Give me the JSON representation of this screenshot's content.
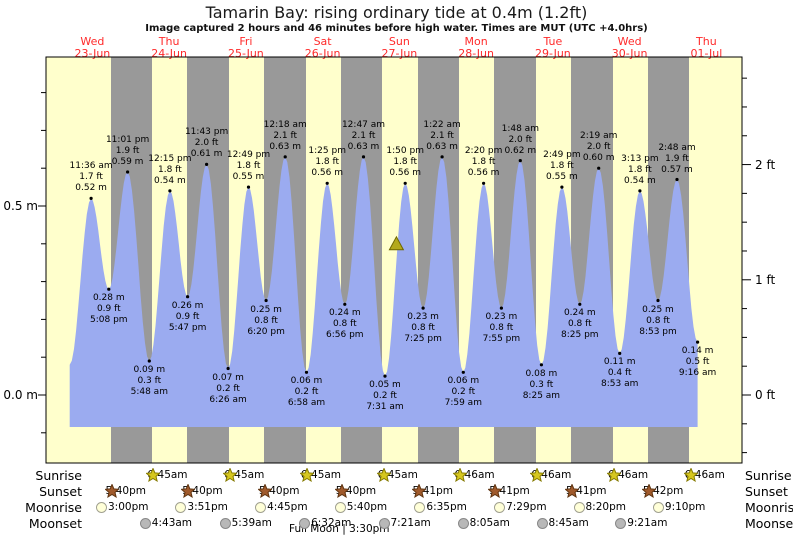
{
  "title": "Tamarin Bay: rising ordinary tide at 0.4m (1.2ft)",
  "subtitle": "Image captured 2 hours and 46 minutes before high water. Times are MUT (UTC +4.0hrs)",
  "days": [
    {
      "weekday": "Wed",
      "date": "23-Jun"
    },
    {
      "weekday": "Thu",
      "date": "24-Jun"
    },
    {
      "weekday": "Fri",
      "date": "25-Jun"
    },
    {
      "weekday": "Sat",
      "date": "26-Jun"
    },
    {
      "weekday": "Sun",
      "date": "27-Jun"
    },
    {
      "weekday": "Mon",
      "date": "28-Jun"
    },
    {
      "weekday": "Tue",
      "date": "29-Jun"
    },
    {
      "weekday": "Wed",
      "date": "30-Jun"
    },
    {
      "weekday": "Thu",
      "date": "01-Jul"
    }
  ],
  "colors": {
    "day_band": "#ffffcc",
    "night_band": "#999999",
    "tide_fill": "#9babf0",
    "day_label_red": "#ff2a2a",
    "sunrise_star": "#d6c71f",
    "sunset_star": "#a05a2c",
    "moonrise_circle": "#ffffd8",
    "moonset_circle": "#b8b8b8",
    "current_marker": "#b3a91c"
  },
  "chart_data": {
    "type": "area",
    "title": "Tide height over time",
    "xlabel": "date/time",
    "ylabel_left": "metres",
    "ylabel_right": "feet",
    "ylim_m": [
      -0.18,
      0.89
    ],
    "left_axis_labels": [
      {
        "text": "0.5 m",
        "value_m": 0.5
      },
      {
        "text": "0.0 m",
        "value_m": 0.0
      }
    ],
    "right_axis_labels": [
      {
        "text": "2 ft",
        "value_ft": 2
      },
      {
        "text": "1 ft",
        "value_ft": 1
      },
      {
        "text": "0 ft",
        "value_ft": 0
      }
    ],
    "extremes": [
      {
        "kind": "high",
        "day": 0,
        "time": "11:36 am",
        "ft_label": "1.7 ft",
        "m_label": "0.52 m",
        "height_m": 0.52
      },
      {
        "kind": "low",
        "day": 0,
        "time": "5:08 pm",
        "ft_label": "0.9 ft",
        "m_label": "0.28 m",
        "height_m": 0.28
      },
      {
        "kind": "high",
        "day": 0,
        "time": "11:01 pm",
        "ft_label": "1.9 ft",
        "m_label": "0.59 m",
        "height_m": 0.59
      },
      {
        "kind": "low",
        "day": 1,
        "time": "5:48 am",
        "ft_label": "0.3 ft",
        "m_label": "0.09 m",
        "height_m": 0.09
      },
      {
        "kind": "high",
        "day": 1,
        "time": "12:15 pm",
        "ft_label": "1.8 ft",
        "m_label": "0.54 m",
        "height_m": 0.54
      },
      {
        "kind": "low",
        "day": 1,
        "time": "5:47 pm",
        "ft_label": "0.9 ft",
        "m_label": "0.26 m",
        "height_m": 0.26
      },
      {
        "kind": "high",
        "day": 1,
        "time": "11:43 pm",
        "ft_label": "2.0 ft",
        "m_label": "0.61 m",
        "height_m": 0.61
      },
      {
        "kind": "low",
        "day": 2,
        "time": "6:26 am",
        "ft_label": "0.2 ft",
        "m_label": "0.07 m",
        "height_m": 0.07
      },
      {
        "kind": "high",
        "day": 2,
        "time": "12:49 pm",
        "ft_label": "1.8 ft",
        "m_label": "0.55 m",
        "height_m": 0.55
      },
      {
        "kind": "low",
        "day": 2,
        "time": "6:20 pm",
        "ft_label": "0.8 ft",
        "m_label": "0.25 m",
        "height_m": 0.25
      },
      {
        "kind": "high",
        "day": 3,
        "time": "12:18 am",
        "ft_label": "2.1 ft",
        "m_label": "0.63 m",
        "height_m": 0.63
      },
      {
        "kind": "low",
        "day": 3,
        "time": "6:58 am",
        "ft_label": "0.2 ft",
        "m_label": "0.06 m",
        "height_m": 0.06
      },
      {
        "kind": "high",
        "day": 3,
        "time": "1:25 pm",
        "ft_label": "1.8 ft",
        "m_label": "0.56 m",
        "height_m": 0.56
      },
      {
        "kind": "low",
        "day": 3,
        "time": "6:56 pm",
        "ft_label": "0.8 ft",
        "m_label": "0.24 m",
        "height_m": 0.24
      },
      {
        "kind": "high",
        "day": 4,
        "time": "12:47 am",
        "ft_label": "2.1 ft",
        "m_label": "0.63 m",
        "height_m": 0.63
      },
      {
        "kind": "low",
        "day": 4,
        "time": "7:31 am",
        "ft_label": "0.2 ft",
        "m_label": "0.05 m",
        "height_m": 0.05
      },
      {
        "kind": "high",
        "day": 4,
        "time": "1:50 pm",
        "ft_label": "1.8 ft",
        "m_label": "0.56 m",
        "height_m": 0.56
      },
      {
        "kind": "low",
        "day": 4,
        "time": "7:25 pm",
        "ft_label": "0.8 ft",
        "m_label": "0.23 m",
        "height_m": 0.23
      },
      {
        "kind": "high",
        "day": 5,
        "time": "1:22 am",
        "ft_label": "2.1 ft",
        "m_label": "0.63 m",
        "height_m": 0.63
      },
      {
        "kind": "low",
        "day": 5,
        "time": "7:59 am",
        "ft_label": "0.2 ft",
        "m_label": "0.06 m",
        "height_m": 0.06
      },
      {
        "kind": "high",
        "day": 5,
        "time": "2:20 pm",
        "ft_label": "1.8 ft",
        "m_label": "0.56 m",
        "height_m": 0.56
      },
      {
        "kind": "low",
        "day": 5,
        "time": "7:55 pm",
        "ft_label": "0.8 ft",
        "m_label": "0.23 m",
        "height_m": 0.23
      },
      {
        "kind": "high",
        "day": 6,
        "time": "1:48 am",
        "ft_label": "2.0 ft",
        "m_label": "0.62 m",
        "height_m": 0.62
      },
      {
        "kind": "low",
        "day": 6,
        "time": "8:25 am",
        "ft_label": "0.3 ft",
        "m_label": "0.08 m",
        "height_m": 0.08
      },
      {
        "kind": "high",
        "day": 6,
        "time": "2:49 pm",
        "ft_label": "1.8 ft",
        "m_label": "0.55 m",
        "height_m": 0.55
      },
      {
        "kind": "low",
        "day": 6,
        "time": "8:25 pm",
        "ft_label": "0.8 ft",
        "m_label": "0.24 m",
        "height_m": 0.24
      },
      {
        "kind": "high",
        "day": 7,
        "time": "2:19 am",
        "ft_label": "2.0 ft",
        "m_label": "0.60 m",
        "height_m": 0.6
      },
      {
        "kind": "low",
        "day": 7,
        "time": "8:53 am",
        "ft_label": "0.4 ft",
        "m_label": "0.11 m",
        "height_m": 0.11
      },
      {
        "kind": "high",
        "day": 7,
        "time": "3:13 pm",
        "ft_label": "1.8 ft",
        "m_label": "0.54 m",
        "height_m": 0.54
      },
      {
        "kind": "low",
        "day": 7,
        "time": "8:53 pm",
        "ft_label": "0.8 ft",
        "m_label": "0.25 m",
        "height_m": 0.25
      },
      {
        "kind": "high",
        "day": 8,
        "time": "2:48 am",
        "ft_label": "1.9 ft",
        "m_label": "0.57 m",
        "height_m": 0.57
      },
      {
        "kind": "low",
        "day": 8,
        "time": "9:16 am",
        "ft_label": "0.5 ft",
        "m_label": "0.14 m",
        "height_m": 0.14
      }
    ],
    "current_marker": {
      "day": 4,
      "hour": 11.07,
      "height_m": 0.4
    }
  },
  "astro": {
    "row_labels_left": [
      "Sunrise",
      "Sunset",
      "Moonrise",
      "Moonset"
    ],
    "row_labels_right": [
      "Sunrise",
      "Sunset",
      "Moonrise",
      "Moonset"
    ],
    "sunrise": [
      {
        "day": 1,
        "time": "6:45am"
      },
      {
        "day": 2,
        "time": "6:45am"
      },
      {
        "day": 3,
        "time": "6:45am"
      },
      {
        "day": 4,
        "time": "6:45am"
      },
      {
        "day": 5,
        "time": "6:46am"
      },
      {
        "day": 6,
        "time": "6:46am"
      },
      {
        "day": 7,
        "time": "6:46am"
      },
      {
        "day": 8,
        "time": "6:46am"
      }
    ],
    "sunset": [
      {
        "day": 0,
        "time": "5:40pm"
      },
      {
        "day": 1,
        "time": "5:40pm"
      },
      {
        "day": 2,
        "time": "5:40pm"
      },
      {
        "day": 3,
        "time": "5:40pm"
      },
      {
        "day": 4,
        "time": "5:41pm"
      },
      {
        "day": 5,
        "time": "5:41pm"
      },
      {
        "day": 6,
        "time": "5:41pm"
      },
      {
        "day": 7,
        "time": "5:42pm"
      }
    ],
    "moonrise": [
      {
        "day": 0,
        "time": "3:00pm"
      },
      {
        "day": 1,
        "time": "3:51pm"
      },
      {
        "day": 2,
        "time": "4:45pm"
      },
      {
        "day": 3,
        "time": "5:40pm"
      },
      {
        "day": 4,
        "time": "6:35pm"
      },
      {
        "day": 5,
        "time": "7:29pm"
      },
      {
        "day": 6,
        "time": "8:20pm"
      },
      {
        "day": 7,
        "time": "9:10pm"
      }
    ],
    "moonset": [
      {
        "day": 1,
        "time": "4:43am"
      },
      {
        "day": 2,
        "time": "5:39am"
      },
      {
        "day": 3,
        "time": "6:32am"
      },
      {
        "day": 4,
        "time": "7:21am"
      },
      {
        "day": 5,
        "time": "8:05am"
      },
      {
        "day": 6,
        "time": "8:45am"
      },
      {
        "day": 7,
        "time": "9:21am"
      }
    ],
    "moon_phase": "Full Moon | 3:30pm"
  }
}
